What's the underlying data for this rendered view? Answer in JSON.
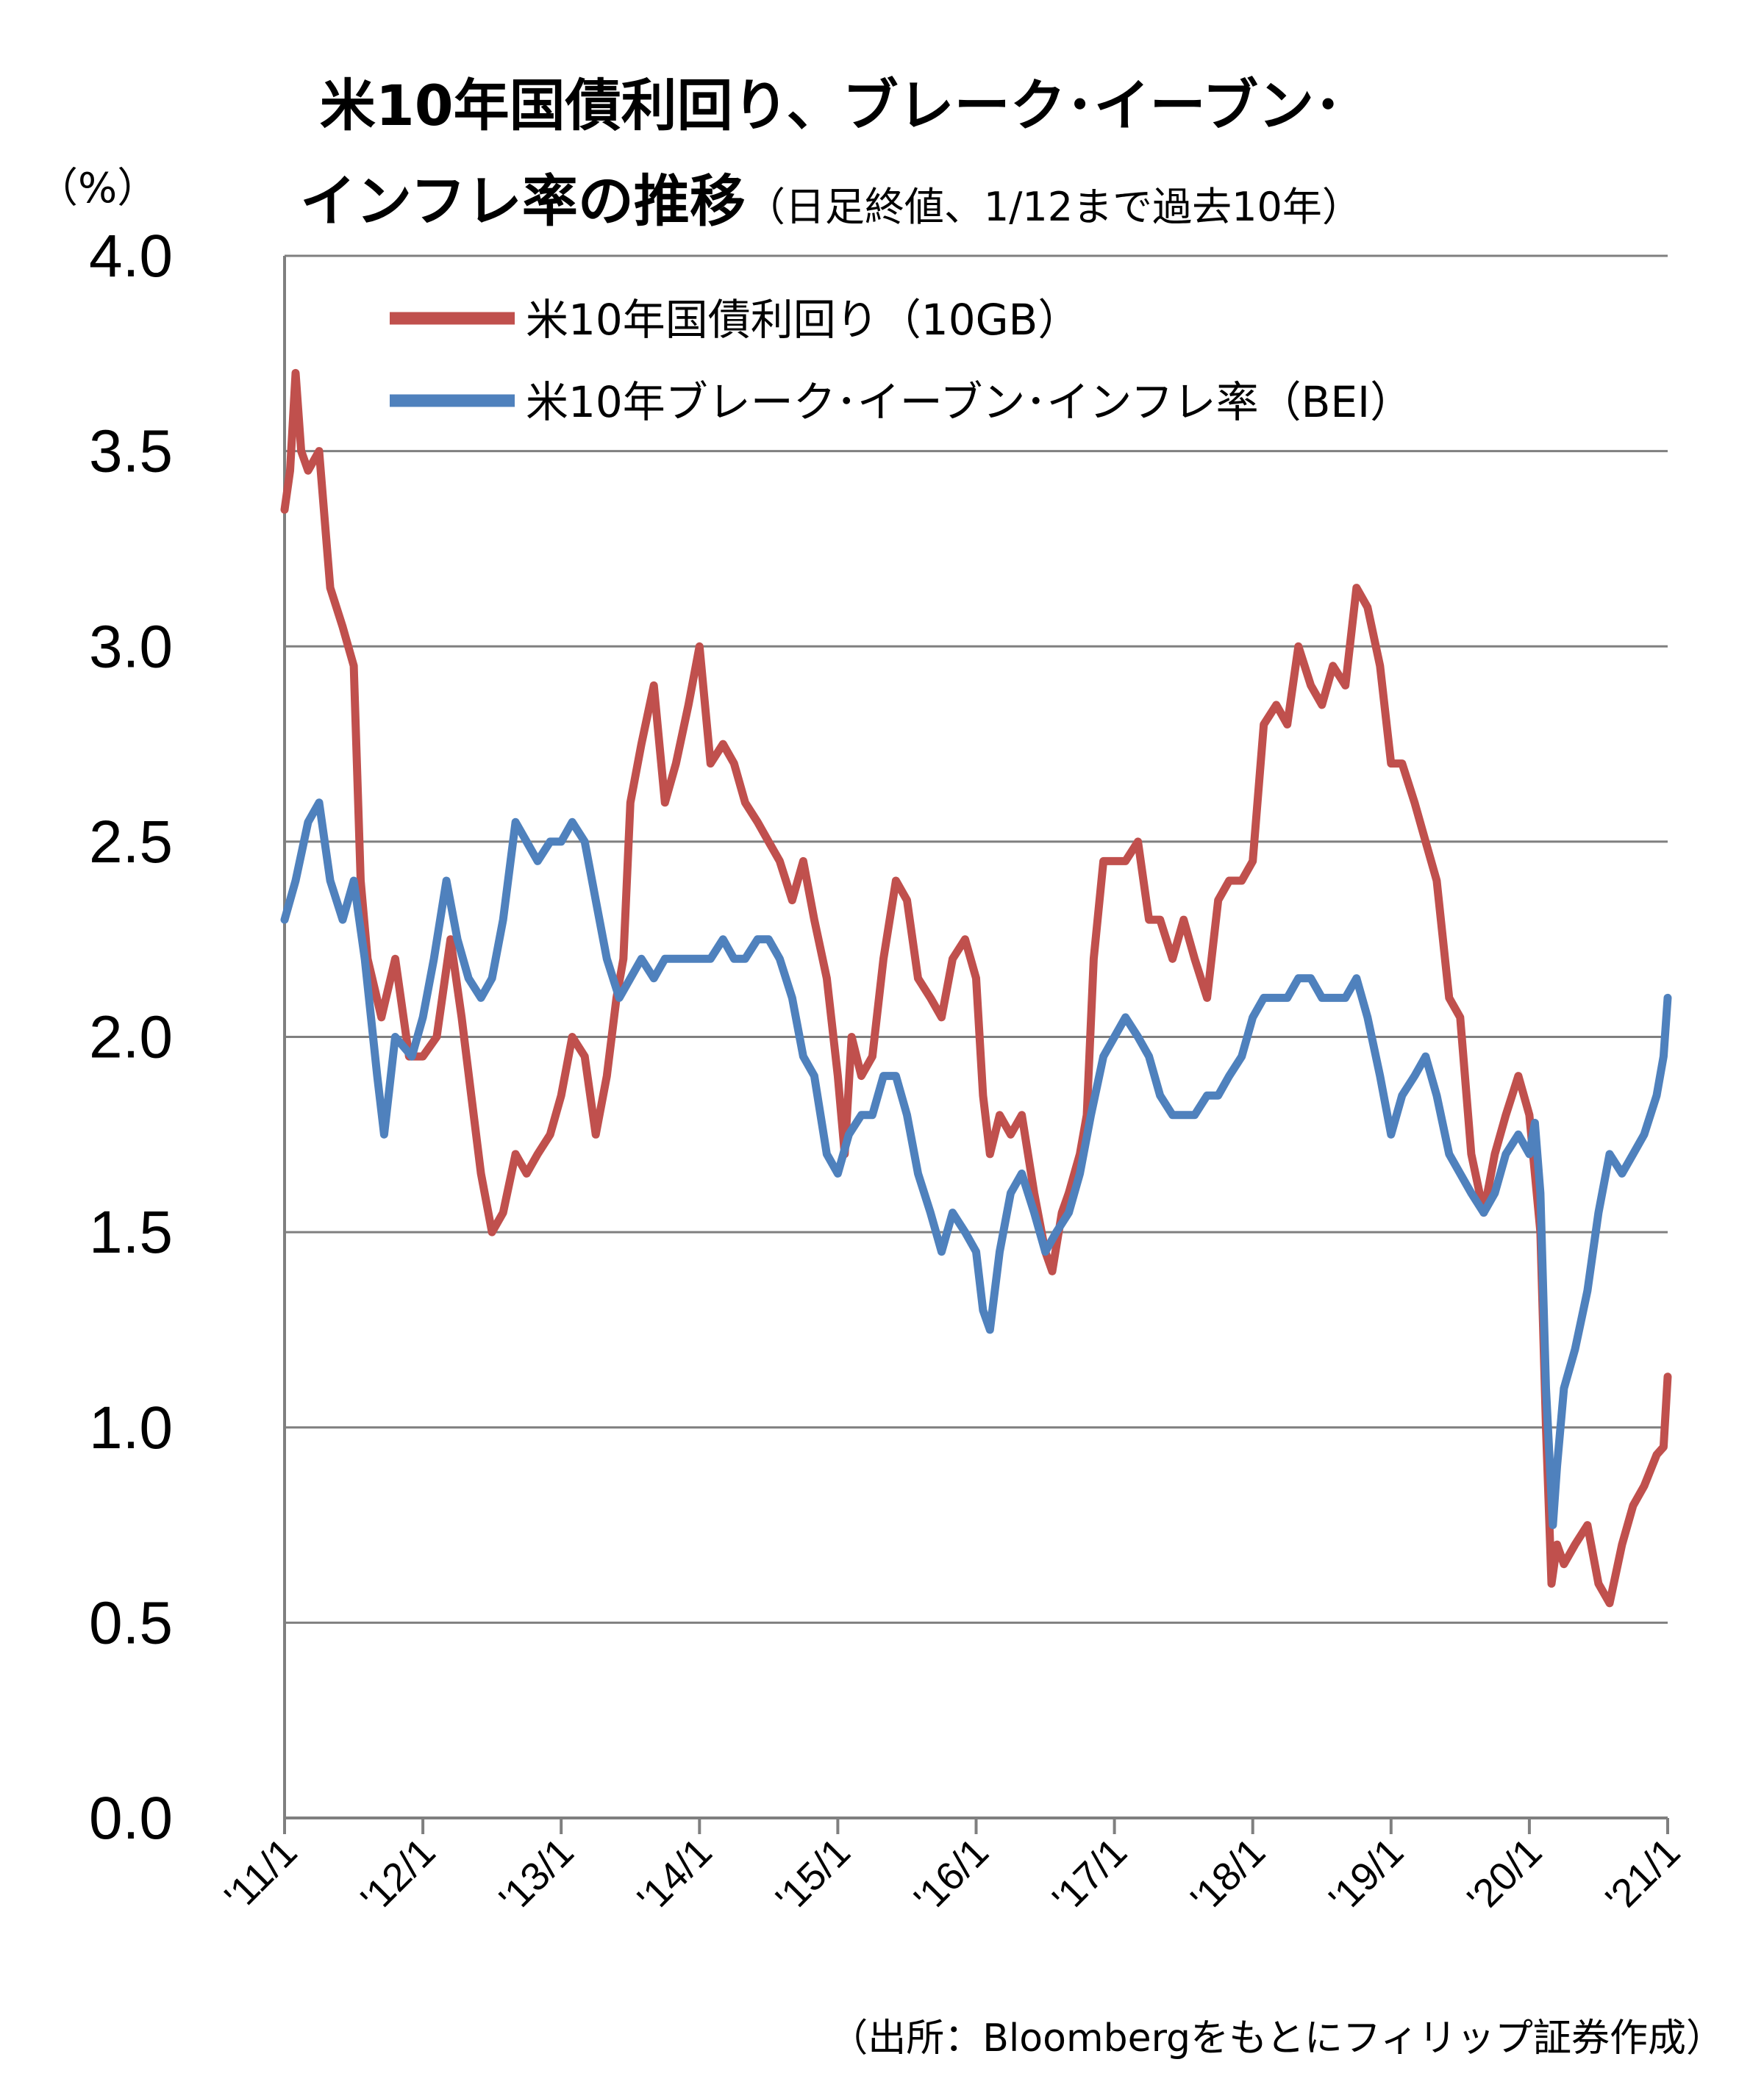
{
  "chart_data": {
    "type": "line",
    "title_line1": "米10年国債利回り、ブレーク･イーブン･",
    "title_line2": "インフレ率の推移",
    "subtitle": "（日足終値、1/12まで過去10年）",
    "ylabel": "（%）",
    "ylim": [
      0.0,
      4.0
    ],
    "yticks": [
      "0.0",
      "0.5",
      "1.0",
      "1.5",
      "2.0",
      "2.5",
      "3.0",
      "3.5",
      "4.0"
    ],
    "xlim": [
      2011.0,
      2021.0
    ],
    "xticks": [
      {
        "x": 2011,
        "label": "'11/1"
      },
      {
        "x": 2012,
        "label": "'12/1"
      },
      {
        "x": 2013,
        "label": "'13/1"
      },
      {
        "x": 2014,
        "label": "'14/1"
      },
      {
        "x": 2015,
        "label": "'15/1"
      },
      {
        "x": 2016,
        "label": "'16/1"
      },
      {
        "x": 2017,
        "label": "'17/1"
      },
      {
        "x": 2018,
        "label": "'18/1"
      },
      {
        "x": 2019,
        "label": "'19/1"
      },
      {
        "x": 2020,
        "label": "'20/1"
      },
      {
        "x": 2021,
        "label": "'21/1"
      }
    ],
    "grid": true,
    "legend_position": "top-center",
    "source": "（出所：Bloombergをもとにフィリップ証券作成）",
    "series": [
      {
        "name": "米10年国債利回り（10GB）",
        "color": "#c0504d",
        "points": [
          [
            2011.0,
            3.35
          ],
          [
            2011.04,
            3.45
          ],
          [
            2011.08,
            3.7
          ],
          [
            2011.12,
            3.5
          ],
          [
            2011.17,
            3.45
          ],
          [
            2011.25,
            3.5
          ],
          [
            2011.33,
            3.15
          ],
          [
            2011.42,
            3.05
          ],
          [
            2011.5,
            2.95
          ],
          [
            2011.55,
            2.4
          ],
          [
            2011.6,
            2.2
          ],
          [
            2011.7,
            2.05
          ],
          [
            2011.8,
            2.2
          ],
          [
            2011.9,
            1.95
          ],
          [
            2012.0,
            1.95
          ],
          [
            2012.1,
            2.0
          ],
          [
            2012.2,
            2.25
          ],
          [
            2012.28,
            2.05
          ],
          [
            2012.35,
            1.85
          ],
          [
            2012.42,
            1.65
          ],
          [
            2012.5,
            1.5
          ],
          [
            2012.58,
            1.55
          ],
          [
            2012.67,
            1.7
          ],
          [
            2012.75,
            1.65
          ],
          [
            2012.83,
            1.7
          ],
          [
            2012.92,
            1.75
          ],
          [
            2013.0,
            1.85
          ],
          [
            2013.08,
            2.0
          ],
          [
            2013.17,
            1.95
          ],
          [
            2013.25,
            1.75
          ],
          [
            2013.33,
            1.9
          ],
          [
            2013.4,
            2.1
          ],
          [
            2013.45,
            2.2
          ],
          [
            2013.5,
            2.6
          ],
          [
            2013.58,
            2.75
          ],
          [
            2013.67,
            2.9
          ],
          [
            2013.75,
            2.6
          ],
          [
            2013.83,
            2.7
          ],
          [
            2013.92,
            2.85
          ],
          [
            2014.0,
            3.0
          ],
          [
            2014.08,
            2.7
          ],
          [
            2014.17,
            2.75
          ],
          [
            2014.25,
            2.7
          ],
          [
            2014.33,
            2.6
          ],
          [
            2014.42,
            2.55
          ],
          [
            2014.5,
            2.5
          ],
          [
            2014.58,
            2.45
          ],
          [
            2014.67,
            2.35
          ],
          [
            2014.75,
            2.45
          ],
          [
            2014.83,
            2.3
          ],
          [
            2014.92,
            2.15
          ],
          [
            2015.0,
            1.9
          ],
          [
            2015.05,
            1.7
          ],
          [
            2015.1,
            2.0
          ],
          [
            2015.17,
            1.9
          ],
          [
            2015.25,
            1.95
          ],
          [
            2015.33,
            2.2
          ],
          [
            2015.42,
            2.4
          ],
          [
            2015.5,
            2.35
          ],
          [
            2015.58,
            2.15
          ],
          [
            2015.67,
            2.1
          ],
          [
            2015.75,
            2.05
          ],
          [
            2015.83,
            2.2
          ],
          [
            2015.92,
            2.25
          ],
          [
            2016.0,
            2.15
          ],
          [
            2016.05,
            1.85
          ],
          [
            2016.1,
            1.7
          ],
          [
            2016.17,
            1.8
          ],
          [
            2016.25,
            1.75
          ],
          [
            2016.33,
            1.8
          ],
          [
            2016.42,
            1.6
          ],
          [
            2016.5,
            1.45
          ],
          [
            2016.55,
            1.4
          ],
          [
            2016.62,
            1.55
          ],
          [
            2016.67,
            1.6
          ],
          [
            2016.75,
            1.7
          ],
          [
            2016.8,
            1.8
          ],
          [
            2016.85,
            2.2
          ],
          [
            2016.92,
            2.45
          ],
          [
            2017.0,
            2.45
          ],
          [
            2017.08,
            2.45
          ],
          [
            2017.17,
            2.5
          ],
          [
            2017.25,
            2.3
          ],
          [
            2017.33,
            2.3
          ],
          [
            2017.42,
            2.2
          ],
          [
            2017.5,
            2.3
          ],
          [
            2017.58,
            2.2
          ],
          [
            2017.67,
            2.1
          ],
          [
            2017.75,
            2.35
          ],
          [
            2017.83,
            2.4
          ],
          [
            2017.92,
            2.4
          ],
          [
            2018.0,
            2.45
          ],
          [
            2018.08,
            2.8
          ],
          [
            2018.17,
            2.85
          ],
          [
            2018.25,
            2.8
          ],
          [
            2018.33,
            3.0
          ],
          [
            2018.42,
            2.9
          ],
          [
            2018.5,
            2.85
          ],
          [
            2018.58,
            2.95
          ],
          [
            2018.67,
            2.9
          ],
          [
            2018.75,
            3.15
          ],
          [
            2018.83,
            3.1
          ],
          [
            2018.92,
            2.95
          ],
          [
            2019.0,
            2.7
          ],
          [
            2019.08,
            2.7
          ],
          [
            2019.17,
            2.6
          ],
          [
            2019.25,
            2.5
          ],
          [
            2019.33,
            2.4
          ],
          [
            2019.42,
            2.1
          ],
          [
            2019.5,
            2.05
          ],
          [
            2019.58,
            1.7
          ],
          [
            2019.67,
            1.55
          ],
          [
            2019.75,
            1.7
          ],
          [
            2019.83,
            1.8
          ],
          [
            2019.92,
            1.9
          ],
          [
            2020.0,
            1.8
          ],
          [
            2020.04,
            1.65
          ],
          [
            2020.08,
            1.5
          ],
          [
            2020.12,
            1.0
          ],
          [
            2020.16,
            0.6
          ],
          [
            2020.2,
            0.7
          ],
          [
            2020.25,
            0.65
          ],
          [
            2020.33,
            0.7
          ],
          [
            2020.42,
            0.75
          ],
          [
            2020.5,
            0.6
          ],
          [
            2020.58,
            0.55
          ],
          [
            2020.67,
            0.7
          ],
          [
            2020.75,
            0.8
          ],
          [
            2020.83,
            0.85
          ],
          [
            2020.92,
            0.93
          ],
          [
            2020.97,
            0.95
          ],
          [
            2021.0,
            1.13
          ]
        ]
      },
      {
        "name": "米10年ブレーク･イーブン･インフレ率（BEI）",
        "color": "#4f81bd",
        "points": [
          [
            2011.0,
            2.3
          ],
          [
            2011.08,
            2.4
          ],
          [
            2011.17,
            2.55
          ],
          [
            2011.25,
            2.6
          ],
          [
            2011.33,
            2.4
          ],
          [
            2011.42,
            2.3
          ],
          [
            2011.5,
            2.4
          ],
          [
            2011.58,
            2.2
          ],
          [
            2011.67,
            1.9
          ],
          [
            2011.72,
            1.75
          ],
          [
            2011.8,
            2.0
          ],
          [
            2011.92,
            1.95
          ],
          [
            2012.0,
            2.05
          ],
          [
            2012.08,
            2.2
          ],
          [
            2012.17,
            2.4
          ],
          [
            2012.25,
            2.25
          ],
          [
            2012.33,
            2.15
          ],
          [
            2012.42,
            2.1
          ],
          [
            2012.5,
            2.15
          ],
          [
            2012.58,
            2.3
          ],
          [
            2012.67,
            2.55
          ],
          [
            2012.75,
            2.5
          ],
          [
            2012.83,
            2.45
          ],
          [
            2012.92,
            2.5
          ],
          [
            2013.0,
            2.5
          ],
          [
            2013.08,
            2.55
          ],
          [
            2013.17,
            2.5
          ],
          [
            2013.25,
            2.35
          ],
          [
            2013.33,
            2.2
          ],
          [
            2013.42,
            2.1
          ],
          [
            2013.5,
            2.15
          ],
          [
            2013.58,
            2.2
          ],
          [
            2013.67,
            2.15
          ],
          [
            2013.75,
            2.2
          ],
          [
            2013.83,
            2.2
          ],
          [
            2013.92,
            2.2
          ],
          [
            2014.0,
            2.2
          ],
          [
            2014.08,
            2.2
          ],
          [
            2014.17,
            2.25
          ],
          [
            2014.25,
            2.2
          ],
          [
            2014.33,
            2.2
          ],
          [
            2014.42,
            2.25
          ],
          [
            2014.5,
            2.25
          ],
          [
            2014.58,
            2.2
          ],
          [
            2014.67,
            2.1
          ],
          [
            2014.75,
            1.95
          ],
          [
            2014.83,
            1.9
          ],
          [
            2014.92,
            1.7
          ],
          [
            2015.0,
            1.65
          ],
          [
            2015.08,
            1.75
          ],
          [
            2015.17,
            1.8
          ],
          [
            2015.25,
            1.8
          ],
          [
            2015.33,
            1.9
          ],
          [
            2015.42,
            1.9
          ],
          [
            2015.5,
            1.8
          ],
          [
            2015.58,
            1.65
          ],
          [
            2015.67,
            1.55
          ],
          [
            2015.75,
            1.45
          ],
          [
            2015.83,
            1.55
          ],
          [
            2015.92,
            1.5
          ],
          [
            2016.0,
            1.45
          ],
          [
            2016.05,
            1.3
          ],
          [
            2016.1,
            1.25
          ],
          [
            2016.17,
            1.45
          ],
          [
            2016.25,
            1.6
          ],
          [
            2016.33,
            1.65
          ],
          [
            2016.42,
            1.55
          ],
          [
            2016.5,
            1.45
          ],
          [
            2016.58,
            1.5
          ],
          [
            2016.67,
            1.55
          ],
          [
            2016.75,
            1.65
          ],
          [
            2016.83,
            1.8
          ],
          [
            2016.92,
            1.95
          ],
          [
            2017.0,
            2.0
          ],
          [
            2017.08,
            2.05
          ],
          [
            2017.17,
            2.0
          ],
          [
            2017.25,
            1.95
          ],
          [
            2017.33,
            1.85
          ],
          [
            2017.42,
            1.8
          ],
          [
            2017.5,
            1.8
          ],
          [
            2017.58,
            1.8
          ],
          [
            2017.67,
            1.85
          ],
          [
            2017.75,
            1.85
          ],
          [
            2017.83,
            1.9
          ],
          [
            2017.92,
            1.95
          ],
          [
            2018.0,
            2.05
          ],
          [
            2018.08,
            2.1
          ],
          [
            2018.17,
            2.1
          ],
          [
            2018.25,
            2.1
          ],
          [
            2018.33,
            2.15
          ],
          [
            2018.42,
            2.15
          ],
          [
            2018.5,
            2.1
          ],
          [
            2018.58,
            2.1
          ],
          [
            2018.67,
            2.1
          ],
          [
            2018.75,
            2.15
          ],
          [
            2018.83,
            2.05
          ],
          [
            2018.92,
            1.9
          ],
          [
            2019.0,
            1.75
          ],
          [
            2019.08,
            1.85
          ],
          [
            2019.17,
            1.9
          ],
          [
            2019.25,
            1.95
          ],
          [
            2019.33,
            1.85
          ],
          [
            2019.42,
            1.7
          ],
          [
            2019.5,
            1.65
          ],
          [
            2019.58,
            1.6
          ],
          [
            2019.67,
            1.55
          ],
          [
            2019.75,
            1.6
          ],
          [
            2019.83,
            1.7
          ],
          [
            2019.92,
            1.75
          ],
          [
            2020.0,
            1.7
          ],
          [
            2020.04,
            1.78
          ],
          [
            2020.08,
            1.6
          ],
          [
            2020.12,
            1.1
          ],
          [
            2020.17,
            0.75
          ],
          [
            2020.2,
            0.9
          ],
          [
            2020.25,
            1.1
          ],
          [
            2020.33,
            1.2
          ],
          [
            2020.42,
            1.35
          ],
          [
            2020.5,
            1.55
          ],
          [
            2020.58,
            1.7
          ],
          [
            2020.67,
            1.65
          ],
          [
            2020.75,
            1.7
          ],
          [
            2020.83,
            1.75
          ],
          [
            2020.92,
            1.85
          ],
          [
            2020.97,
            1.95
          ],
          [
            2021.0,
            2.1
          ]
        ]
      }
    ]
  }
}
